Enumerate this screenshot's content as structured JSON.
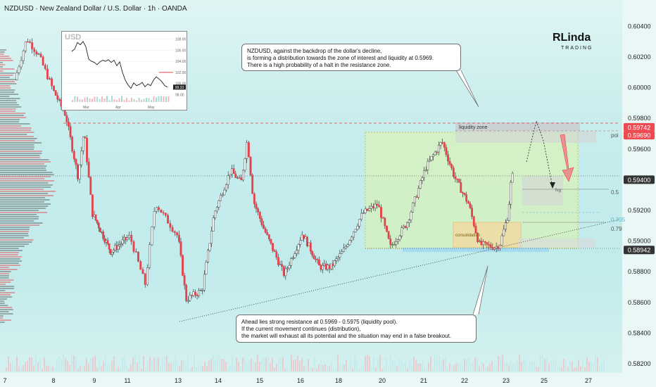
{
  "header": {
    "title": "NZDUSD · New Zealand Dollar / U.S. Dollar · 1h · OANDA"
  },
  "logo": {
    "text_top": "RLinda",
    "text_bottom": "TRADING"
  },
  "callouts": {
    "top": "NZDUSD, against the backdrop of the dollar's decline,\nis forming a distribution towards the zone of interest and liquidity at 0.5969.\nThere is a high probability of a halt in the resistance zone.",
    "bottom": "Ahead lies strong resistance at 0.5969 - 0.5975 (liquidity pool).\nIf the current movement continues (distribution),\nthe market will exhaust all its potential and the situation may end in a false breakout."
  },
  "colors": {
    "up": "#ffffff",
    "down": "#e8404a",
    "wick": "#222222",
    "zone_green": "#d9f2b8",
    "consolidation": "#f3d9a0",
    "arrow_red": "#f17a80",
    "price_tag": "#ee4a52",
    "fib_teal": "#56b8c4"
  },
  "chart_data": [
    {
      "type": "candlestick",
      "title": "NZDUSD · New Zealand Dollar / U.S. Dollar · 1h · OANDA",
      "x_tick_labels": [
        "7",
        "8",
        "9",
        "11",
        "13",
        "14",
        "15",
        "16",
        "18",
        "20",
        "21",
        "22",
        "23",
        "25",
        "27"
      ],
      "y_tick_labels": [
        "0.60400",
        "0.60200",
        "0.60000",
        "0.59800",
        "0.59600",
        "0.59200",
        "0.59000",
        "0.58800",
        "0.58600",
        "0.58400",
        "0.58200"
      ],
      "ylim": [
        0.5815,
        0.6051
      ],
      "price_tags": [
        {
          "label": "0.59742",
          "value": 0.59742,
          "style": "red"
        },
        {
          "label": "0.59690",
          "value": 0.5969,
          "style": "red"
        },
        {
          "label": "0.59400",
          "value": 0.594,
          "style": "dark"
        },
        {
          "label": "0.58942",
          "value": 0.58942,
          "style": "dark"
        }
      ],
      "levels": [
        {
          "label": "poi",
          "value": 0.5969
        },
        {
          "label": "0.5",
          "value": 0.5932
        },
        {
          "label": "0.705",
          "value": 0.5914
        },
        {
          "label": "0.79",
          "value": 0.5908
        }
      ],
      "zone_labels": {
        "liquidity": "liquidity zone",
        "consolidation": "consolidation",
        "fvg": "fvg"
      },
      "anchors": [
        {
          "x": 0.2,
          "y": 0.6005
        },
        {
          "x": 0.45,
          "y": 0.6032
        },
        {
          "x": 0.7,
          "y": 0.6021
        },
        {
          "x": 1.0,
          "y": 0.5998
        },
        {
          "x": 1.3,
          "y": 0.5982
        },
        {
          "x": 1.6,
          "y": 0.5942
        },
        {
          "x": 1.75,
          "y": 0.5972
        },
        {
          "x": 1.95,
          "y": 0.5918
        },
        {
          "x": 2.5,
          "y": 0.5893
        },
        {
          "x": 3.05,
          "y": 0.5903
        },
        {
          "x": 3.35,
          "y": 0.5872
        },
        {
          "x": 3.55,
          "y": 0.5925
        },
        {
          "x": 4.0,
          "y": 0.5903
        },
        {
          "x": 4.2,
          "y": 0.5862
        },
        {
          "x": 4.6,
          "y": 0.5868
        },
        {
          "x": 4.9,
          "y": 0.5918
        },
        {
          "x": 5.3,
          "y": 0.5946
        },
        {
          "x": 5.55,
          "y": 0.5938
        },
        {
          "x": 5.7,
          "y": 0.5966
        },
        {
          "x": 5.85,
          "y": 0.5926
        },
        {
          "x": 6.1,
          "y": 0.5908
        },
        {
          "x": 6.35,
          "y": 0.5893
        },
        {
          "x": 6.6,
          "y": 0.5878
        },
        {
          "x": 7.05,
          "y": 0.5905
        },
        {
          "x": 7.5,
          "y": 0.5883
        },
        {
          "x": 7.8,
          "y": 0.5883
        },
        {
          "x": 8.1,
          "y": 0.5893
        },
        {
          "x": 8.55,
          "y": 0.5918
        },
        {
          "x": 8.9,
          "y": 0.5924
        },
        {
          "x": 9.2,
          "y": 0.5896
        },
        {
          "x": 9.6,
          "y": 0.5912
        },
        {
          "x": 10.05,
          "y": 0.5948
        },
        {
          "x": 10.45,
          "y": 0.5965
        },
        {
          "x": 10.75,
          "y": 0.5942
        },
        {
          "x": 11.1,
          "y": 0.5924
        },
        {
          "x": 11.35,
          "y": 0.5898
        },
        {
          "x": 11.75,
          "y": 0.5896
        },
        {
          "x": 11.85,
          "y": 0.5898
        },
        {
          "x": 12.05,
          "y": 0.5917
        },
        {
          "x": 12.15,
          "y": 0.5944
        },
        {
          "x": 12.2,
          "y": 0.594
        }
      ]
    },
    {
      "type": "line",
      "title": "USD",
      "x_tick_labels": [
        "Mar",
        "Apr",
        "May"
      ],
      "y_tick_labels": [
        "108.00",
        "106.00",
        "104.00",
        "102.00",
        "100.00",
        "98.00"
      ],
      "last_value_label": "99.33",
      "ylim": [
        97.4,
        108.6
      ],
      "values": [
        105.8,
        106.2,
        107.4,
        107.0,
        107.6,
        106.6,
        104.4,
        104.0,
        103.8,
        103.4,
        103.9,
        104.2,
        104.0,
        104.3,
        103.8,
        104.2,
        103.2,
        103.9,
        102.0,
        100.6,
        99.7,
        99.1,
        100.1,
        99.6,
        99.8,
        100.2,
        99.4,
        99.9,
        99.6,
        100.6,
        101.2,
        100.8,
        100.3,
        99.6,
        99.33
      ]
    }
  ]
}
